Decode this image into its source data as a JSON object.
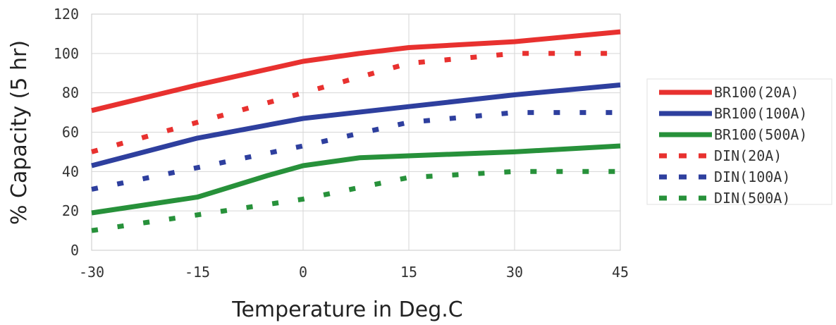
{
  "chart_data": {
    "type": "line",
    "title": "",
    "xlabel": "Temperature in Deg.C",
    "ylabel": "% Capacity (5 hr)",
    "xlim": [
      -30,
      45
    ],
    "ylim": [
      0,
      120
    ],
    "xticks": [
      -30,
      -15,
      0,
      15,
      30,
      45
    ],
    "yticks": [
      0,
      20,
      40,
      60,
      80,
      100,
      120
    ],
    "xtick_labels": [
      "-30",
      "-15",
      "0",
      "15",
      "30",
      "45"
    ],
    "ytick_labels": [
      "0",
      "20",
      "40",
      "60",
      "80",
      "100",
      "120"
    ],
    "grid": true,
    "legend_position": "right",
    "series": [
      {
        "name": "BR100(20A)",
        "color": "#e8312f",
        "style": "solid",
        "x": [
          -30,
          -15,
          0,
          8,
          15,
          30,
          45
        ],
        "y": [
          71,
          84,
          96,
          100,
          103,
          106,
          111
        ]
      },
      {
        "name": "BR100(100A)",
        "color": "#2e3f9e",
        "style": "solid",
        "x": [
          -30,
          -15,
          0,
          15,
          30,
          45
        ],
        "y": [
          43,
          57,
          67,
          73,
          79,
          84
        ]
      },
      {
        "name": "BR100(500A)",
        "color": "#27913a",
        "style": "solid",
        "x": [
          -30,
          -15,
          -5,
          0,
          8,
          15,
          30,
          45
        ],
        "y": [
          19,
          27,
          38,
          43,
          47,
          48,
          50,
          53
        ]
      },
      {
        "name": "DIN(20A)",
        "color": "#e8312f",
        "style": "dashed",
        "x": [
          -30,
          -15,
          0,
          15,
          30,
          45
        ],
        "y": [
          50,
          65,
          80,
          95,
          100,
          100
        ]
      },
      {
        "name": "DIN(100A)",
        "color": "#2e3f9e",
        "style": "dashed",
        "x": [
          -30,
          -15,
          0,
          15,
          30,
          45
        ],
        "y": [
          31,
          42,
          53,
          65,
          70,
          70
        ]
      },
      {
        "name": "DIN(500A)",
        "color": "#27913a",
        "style": "dashed",
        "x": [
          -30,
          -15,
          0,
          15,
          30,
          45
        ],
        "y": [
          10,
          18,
          26,
          37,
          40,
          40
        ]
      }
    ]
  }
}
